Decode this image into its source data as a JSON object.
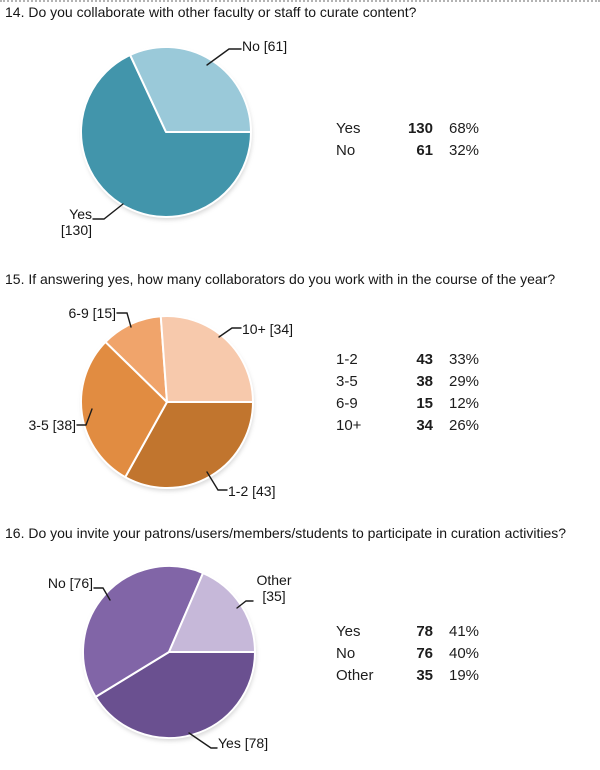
{
  "chart_data": [
    {
      "type": "pie",
      "title": "14. Do you collaborate with other faculty or staff to curate content?",
      "categories": [
        "Yes",
        "No"
      ],
      "values": [
        130,
        61
      ],
      "percent_labels": [
        "68%",
        "32%"
      ],
      "colors": [
        "#4295AB",
        "#9AC9D9"
      ],
      "callout_labels": [
        [
          "Yes",
          "[130]"
        ],
        [
          "No [61]"
        ]
      ],
      "legend_position": "right",
      "start_angle": "3 o'clock",
      "direction": "clockwise"
    },
    {
      "type": "pie",
      "title": "15. If answering yes, how many collaborators do you work with in the course of the year?",
      "categories": [
        "1-2",
        "3-5",
        "6-9",
        "10+"
      ],
      "values": [
        43,
        38,
        15,
        34
      ],
      "percent_labels": [
        "33%",
        "29%",
        "12%",
        "26%"
      ],
      "colors": [
        "#C1752E",
        "#E18C41",
        "#F0A46B",
        "#F7C9AC"
      ],
      "callout_labels": [
        [
          "1-2 [43]"
        ],
        [
          "3-5 [38]"
        ],
        [
          "6-9 [15]"
        ],
        [
          "10+ [34]"
        ]
      ],
      "legend_position": "right",
      "start_angle": "3 o'clock",
      "direction": "clockwise"
    },
    {
      "type": "pie",
      "title": "16. Do you invite your patrons/users/members/students to participate in curation activities?",
      "categories": [
        "Yes",
        "No",
        "Other"
      ],
      "values": [
        78,
        76,
        35
      ],
      "percent_labels": [
        "41%",
        "40%",
        "19%"
      ],
      "colors": [
        "#6A5090",
        "#8165A7",
        "#C6B8D9"
      ],
      "callout_labels": [
        [
          "Yes [78]"
        ],
        [
          "No [76]"
        ],
        [
          "Other",
          "[35]"
        ]
      ],
      "legend_position": "right",
      "start_angle": "3 o'clock",
      "direction": "clockwise"
    }
  ]
}
